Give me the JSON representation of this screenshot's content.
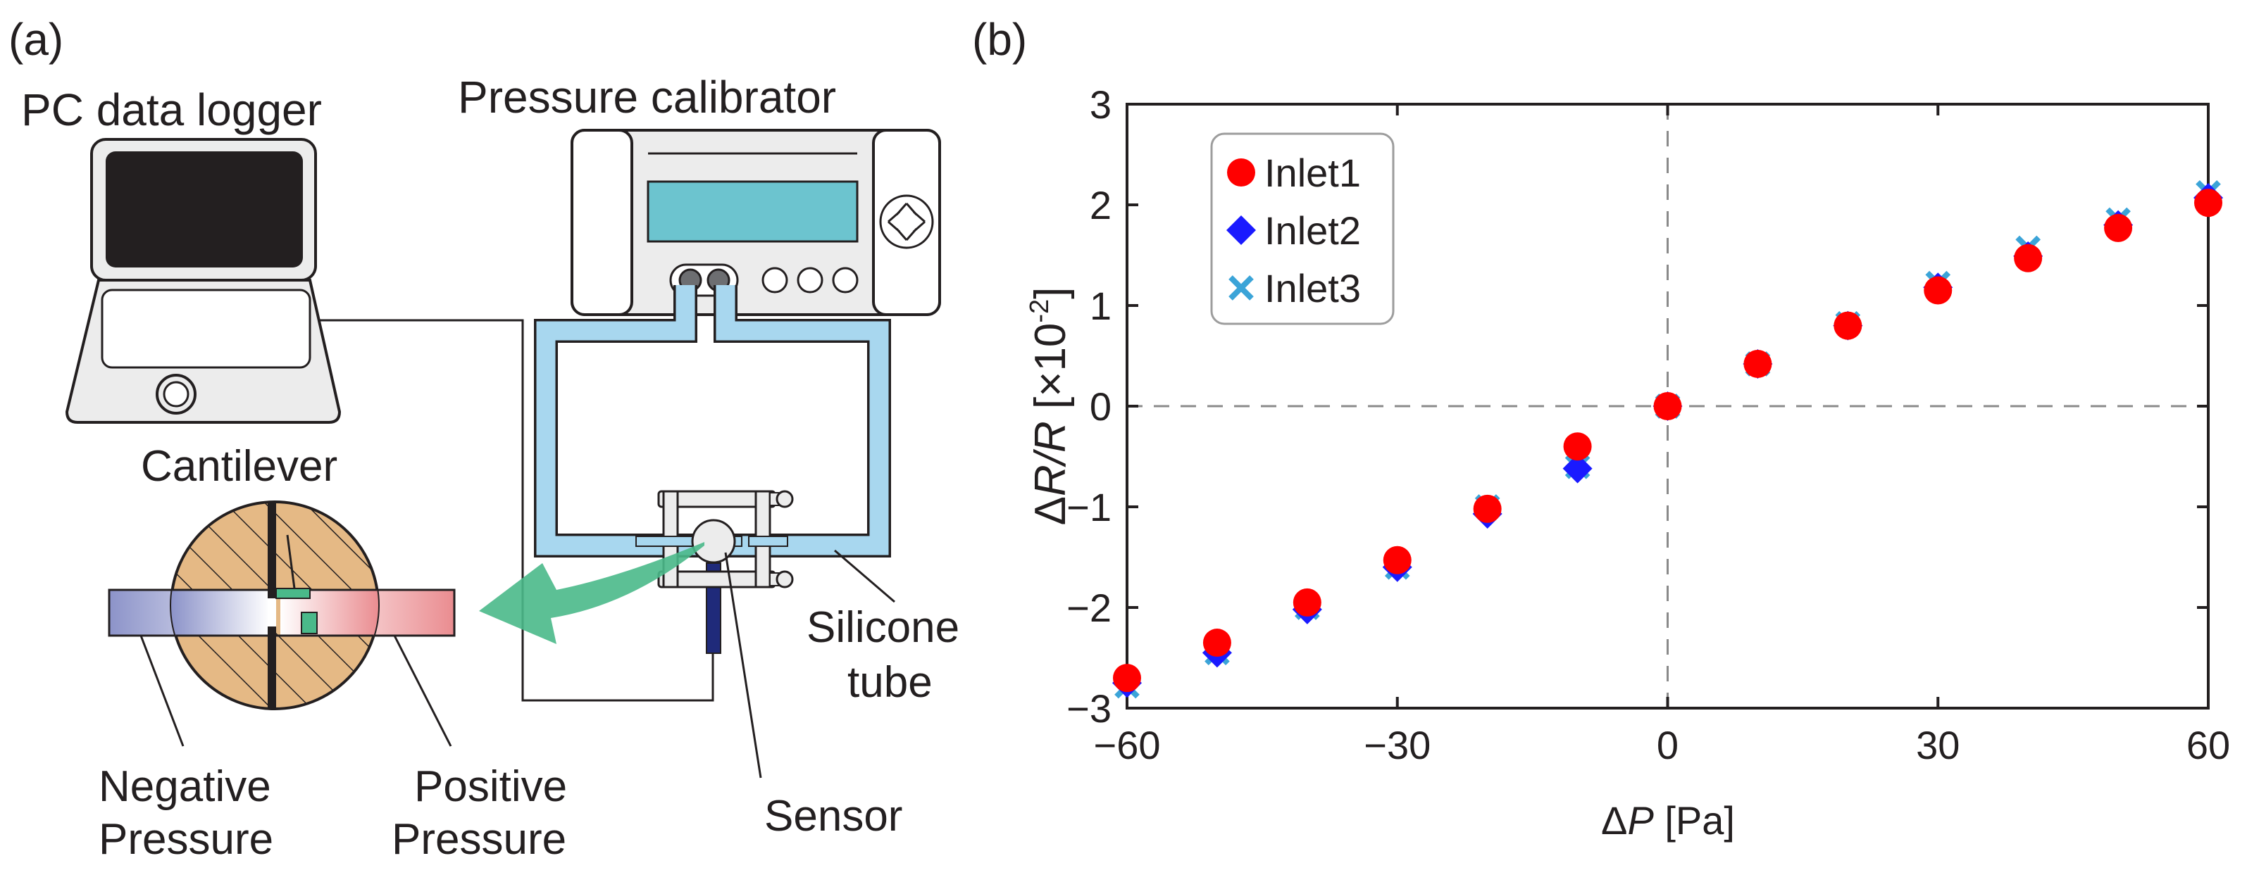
{
  "panel_a": {
    "label": "(a)",
    "pc_label": "PC data logger",
    "calibrator_label": "Pressure calibrator",
    "cantilever_label": "Cantilever",
    "silicone_label_1": "Silicone",
    "silicone_label_2": "tube",
    "sensor_label": "Sensor",
    "negative_label_1": "Negative",
    "negative_label_2": "Pressure",
    "positive_label_1": "Positive",
    "positive_label_2": "Pressure",
    "colors": {
      "screen": "#231f20",
      "display": "#6cc4cf",
      "tube": "#a8d7ef",
      "tube_outline": "#231f20",
      "wood": "#e5b985",
      "arrow": "#4ab98a",
      "negative": "#8c93c9",
      "positive": "#ea8c90"
    }
  },
  "panel_b": {
    "label": "(b)",
    "x_label_delta": "Δ",
    "x_label_var": "P",
    "x_label_unit": " [Pa]",
    "y_label_delta": "Δ",
    "y_label_var": "R/R",
    "y_label_unit": " [×10",
    "y_label_exp": "-2",
    "y_label_close": "]"
  },
  "chart_data": {
    "type": "scatter",
    "title": "",
    "xlabel": "ΔP [Pa]",
    "ylabel": "ΔR/R [×10^-2]",
    "xlim": [
      -60,
      60
    ],
    "ylim": [
      -3,
      3
    ],
    "xticks": [
      -60,
      -30,
      0,
      30,
      60
    ],
    "xtick_labels": [
      "−60",
      "−30",
      "0",
      "30",
      "60"
    ],
    "yticks": [
      3,
      2,
      1,
      0,
      -1,
      -2,
      -3
    ],
    "ytick_labels": [
      "3",
      "2",
      "1",
      "0",
      "−1",
      "−2",
      "−3"
    ],
    "x": [
      -60,
      -50,
      -40,
      -30,
      -20,
      -10,
      0,
      10,
      20,
      30,
      40,
      50,
      60
    ],
    "legend_position": "top-left",
    "series": [
      {
        "name": "Inlet1",
        "marker": "circle",
        "color": "#ff0000",
        "values": [
          -2.7,
          -2.35,
          -1.95,
          -1.53,
          -1.02,
          -0.4,
          0.0,
          0.42,
          0.8,
          1.15,
          1.47,
          1.77,
          2.02
        ]
      },
      {
        "name": "Inlet2",
        "marker": "diamond",
        "color": "#1a1aff",
        "values": [
          -2.75,
          -2.45,
          -2.02,
          -1.6,
          -1.07,
          -0.62,
          0.0,
          0.42,
          0.8,
          1.18,
          1.49,
          1.8,
          2.07
        ]
      },
      {
        "name": "Inlet3",
        "marker": "x",
        "color": "#3ba4d8",
        "values": [
          -2.78,
          -2.45,
          -2.0,
          -1.6,
          -1.0,
          -0.6,
          0.0,
          0.42,
          0.82,
          1.22,
          1.57,
          1.85,
          2.12
        ]
      }
    ]
  }
}
